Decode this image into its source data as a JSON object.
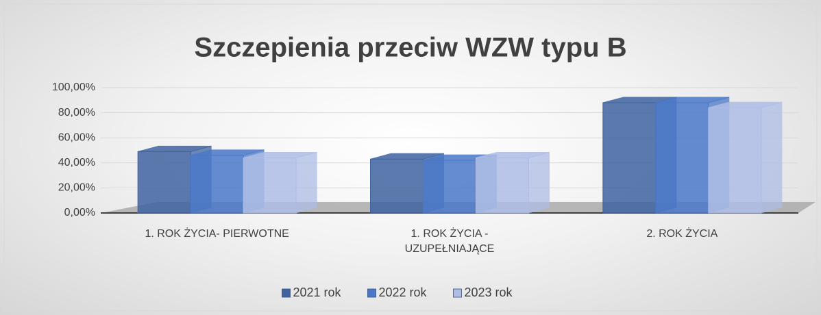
{
  "chart_data": {
    "type": "bar",
    "title": "Szczepienia przeciw WZW typu B",
    "categories": [
      "1. ROK ŻYCIA- PIERWOTNE",
      "1. ROK ŻYCIA - UZUPEŁNIAJĄCE",
      "2. ROK ŻYCIA"
    ],
    "series": [
      {
        "name": "2021 rok",
        "color": "#3f639f",
        "values": [
          49,
          43,
          88
        ]
      },
      {
        "name": "2022 rok",
        "color": "#4a78c8",
        "values": [
          46,
          42,
          88
        ]
      },
      {
        "name": "2023 rok",
        "color": "#aebde6",
        "values": [
          44,
          44,
          84
        ]
      }
    ],
    "ylim": [
      0,
      100
    ],
    "yticks": [
      {
        "value": 0,
        "label": "0,00%"
      },
      {
        "value": 20,
        "label": "20,00%"
      },
      {
        "value": 40,
        "label": "40,00%"
      },
      {
        "value": 60,
        "label": "60,00%"
      },
      {
        "value": 80,
        "label": "80,00%"
      },
      {
        "value": 100,
        "label": "100,00%"
      }
    ],
    "grid": true,
    "legend": "bottom"
  }
}
